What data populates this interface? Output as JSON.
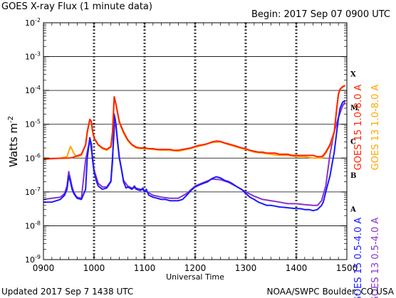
{
  "chart_data": {
    "type": "line",
    "title": "GOES X-ray Flux (1 minute data)",
    "begin_label": "Begin: 2017 Sep 07 0900 UTC",
    "xlabel": "Universal Time",
    "ylabel": "Watts m",
    "ylabel_exp": "-2",
    "x_ticks": [
      "0900",
      "1000",
      "1100",
      "1200",
      "1300",
      "1400",
      "1500"
    ],
    "xlim": [
      "0900",
      "1500"
    ],
    "yscale": "log",
    "ylim": [
      1e-09,
      0.01
    ],
    "y_ticks": [
      {
        "base": "10",
        "exp": "-9"
      },
      {
        "base": "10",
        "exp": "-8"
      },
      {
        "base": "10",
        "exp": "-7"
      },
      {
        "base": "10",
        "exp": "-6"
      },
      {
        "base": "10",
        "exp": "-5"
      },
      {
        "base": "10",
        "exp": "-4"
      },
      {
        "base": "10",
        "exp": "-3"
      },
      {
        "base": "10",
        "exp": "-2"
      }
    ],
    "flare_classes": [
      {
        "label": "X",
        "value": 0.0001
      },
      {
        "label": "M",
        "value": 1e-05
      },
      {
        "label": "C",
        "value": 1e-06
      },
      {
        "label": "B",
        "value": 1e-07
      },
      {
        "label": "A",
        "value": 1e-08
      }
    ],
    "grid": "dashed vertical lines at each hour, solid horizontal lines at each decade",
    "legend_placement": "right, rotated vertical",
    "series": [
      {
        "name": "GOES 15 1.0-8.0 A",
        "color": "#ff2200",
        "x": [
          "0900",
          "0930",
          "0935",
          "0945",
          "0950",
          "0952",
          "0955",
          "0957",
          "0958",
          "1000",
          "1005",
          "1010",
          "1015",
          "1020",
          "1022",
          "1024",
          "1026",
          "1028",
          "1030",
          "1035",
          "1040",
          "1045",
          "1050",
          "1055",
          "1100",
          "1105",
          "1110",
          "1115",
          "1120",
          "1125",
          "1130",
          "1135",
          "1140",
          "1145",
          "1150",
          "1155",
          "1200",
          "1205",
          "1210",
          "1215",
          "1220",
          "1225",
          "1230",
          "1235",
          "1240",
          "1245",
          "1250",
          "1255",
          "1300",
          "1305",
          "1310",
          "1315",
          "1320",
          "1325",
          "1330",
          "1335",
          "1340",
          "1345",
          "1350",
          "1355",
          "1400",
          "1405",
          "1410",
          "1415",
          "1420",
          "1425",
          "1430",
          "1432",
          "1435",
          "1440",
          "1445",
          "1448",
          "1450",
          "1452",
          "1455",
          "1458",
          "1500"
        ],
        "values": [
          9.5e-07,
          1e-06,
          1.05e-06,
          1.3e-06,
          2.5e-06,
          6e-06,
          1.4e-05,
          1.2e-05,
          7e-06,
          4e-06,
          2.5e-06,
          2e-06,
          1.8e-06,
          2.2e-06,
          6e-06,
          6.5e-05,
          4e-05,
          2.2e-05,
          1.2e-05,
          6e-06,
          3.5e-06,
          2.5e-06,
          2.1e-06,
          2e-06,
          2e-06,
          1.9e-06,
          1.9e-06,
          1.8e-06,
          1.8e-06,
          1.8e-06,
          1.8e-06,
          1.7e-06,
          1.7e-06,
          1.8e-06,
          1.9e-06,
          2e-06,
          2.2e-06,
          2.4e-06,
          2.5e-06,
          2.7e-06,
          3e-06,
          3.2e-06,
          3.1e-06,
          2.8e-06,
          2.6e-06,
          2.4e-06,
          2.2e-06,
          2e-06,
          1.9e-06,
          1.7e-06,
          1.6e-06,
          1.5e-06,
          1.5e-06,
          1.4e-06,
          1.4e-06,
          1.4e-06,
          1.3e-06,
          1.3e-06,
          1.3e-06,
          1.2e-06,
          1.2e-06,
          1.2e-06,
          1.2e-06,
          1.2e-06,
          1.2e-06,
          1.1e-06,
          1.1e-06,
          1.2e-06,
          1.5e-06,
          2.5e-06,
          6e-06,
          3e-05,
          8e-05,
          0.00011,
          0.00013,
          0.00014,
          null
        ]
      },
      {
        "name": "GOES 13 1.0-8.0 A",
        "color": "#ffa500",
        "x": [
          "0900",
          "0910",
          "0920",
          "0928",
          "0930",
          "0932",
          "0934",
          "0936",
          "0938",
          "0940",
          "0945",
          "0950",
          "0952",
          "0955",
          "0957",
          "0958",
          "1000",
          "1005",
          "1010",
          "1015",
          "1020",
          "1022",
          "1024",
          "1026",
          "1028",
          "1030",
          "1035",
          "1040",
          "1045",
          "1050",
          "1055",
          "1100",
          "1110",
          "1120",
          "1130",
          "1140",
          "1150",
          "1200",
          "1210",
          "1220",
          "1230",
          "1240",
          "1250",
          "1300",
          "1310",
          "1320",
          "1330",
          "1340",
          "1350",
          "1400",
          "1410",
          "1420",
          "1425",
          "1430",
          "1432",
          "1435",
          "1440",
          "1445",
          "1448",
          "1450",
          "1452",
          "1455",
          "1458",
          "1500"
        ],
        "values": [
          9e-07,
          9.5e-07,
          1e-06,
          1.1e-06,
          1.6e-06,
          2.2e-06,
          1.8e-06,
          1.4e-06,
          1.2e-06,
          1.1e-06,
          1.2e-06,
          2.4e-06,
          5.5e-06,
          1.3e-05,
          1.1e-05,
          6.5e-06,
          3.8e-06,
          2.4e-06,
          1.9e-06,
          1.7e-06,
          2.1e-06,
          5.5e-06,
          6e-05,
          3.8e-05,
          2.1e-05,
          1.1e-05,
          5.5e-06,
          3.3e-06,
          2.4e-06,
          2e-06,
          1.9e-06,
          1.9e-06,
          1.8e-06,
          1.7e-06,
          1.7e-06,
          1.6e-06,
          1.8e-06,
          2.1e-06,
          2.4e-06,
          2.9e-06,
          3e-06,
          2.5e-06,
          2.1e-06,
          1.8e-06,
          1.5e-06,
          1.4e-06,
          1.3e-06,
          1.2e-06,
          1.2e-06,
          1.1e-06,
          1.1e-06,
          1e-06,
          1e-06,
          1e-06,
          1.1e-06,
          1.4e-06,
          2.3e-06,
          5.5e-06,
          2.8e-05,
          7.5e-05,
          0.000105,
          0.000125,
          0.000135,
          null
        ]
      },
      {
        "name": "GOES 15 0.5-4.0 A",
        "color": "#1a1aff",
        "x": [
          "0900",
          "0910",
          "0920",
          "0925",
          "0928",
          "0930",
          "0932",
          "0934",
          "0936",
          "0938",
          "0940",
          "0945",
          "0950",
          "0952",
          "0955",
          "0957",
          "0958",
          "1000",
          "1003",
          "1005",
          "1008",
          "1010",
          "1015",
          "1020",
          "1022",
          "1024",
          "1026",
          "1028",
          "1030",
          "1033",
          "1035",
          "1038",
          "1040",
          "1045",
          "1048",
          "1050",
          "1055",
          "1058",
          "1100",
          "1102",
          "1105",
          "1110",
          "1115",
          "1120",
          "1125",
          "1130",
          "1135",
          "1140",
          "1145",
          "1150",
          "1155",
          "1200",
          "1205",
          "1210",
          "1215",
          "1220",
          "1225",
          "1230",
          "1235",
          "1240",
          "1245",
          "1250",
          "1255",
          "1300",
          "1305",
          "1310",
          "1315",
          "1320",
          "1325",
          "1330",
          "1335",
          "1340",
          "1345",
          "1350",
          "1355",
          "1400",
          "1405",
          "1410",
          "1415",
          "1420",
          "1425",
          "1430",
          "1432",
          "1435",
          "1440",
          "1445",
          "1448",
          "1450",
          "1452",
          "1455",
          "1458",
          "1500"
        ],
        "values": [
          5e-08,
          5e-08,
          6e-08,
          8e-08,
          1.2e-07,
          3e-07,
          2e-07,
          1.2e-07,
          9e-08,
          7.5e-08,
          6.5e-08,
          6e-08,
          1.2e-07,
          1e-06,
          4e-06,
          2.5e-06,
          1e-06,
          4e-07,
          2e-07,
          1.5e-07,
          1.3e-07,
          1.2e-07,
          1.3e-07,
          2e-07,
          8e-07,
          2e-05,
          1e-05,
          3e-06,
          1e-06,
          4e-07,
          2e-07,
          1.3e-07,
          1.4e-07,
          1.2e-07,
          1.5e-07,
          1.2e-07,
          1.1e-07,
          1.3e-07,
          1e-07,
          1.2e-07,
          8e-08,
          7e-08,
          6.5e-08,
          6e-08,
          6e-08,
          5.5e-08,
          5.5e-08,
          5.5e-08,
          6e-08,
          8e-08,
          1.1e-07,
          1.4e-07,
          1.6e-07,
          1.8e-07,
          2e-07,
          2.5e-07,
          2.8e-07,
          2.6e-07,
          2.2e-07,
          2e-07,
          1.7e-07,
          1.4e-07,
          1.2e-07,
          9e-08,
          7e-08,
          6e-08,
          5e-08,
          4.5e-08,
          4e-08,
          4e-08,
          3.8e-08,
          3.6e-08,
          3.5e-08,
          3.4e-08,
          3.3e-08,
          3.2e-08,
          3.2e-08,
          3e-08,
          3e-08,
          2.8e-08,
          3e-08,
          4e-08,
          5e-08,
          1e-07,
          3e-07,
          1.5e-06,
          6e-06,
          1.5e-05,
          3e-05,
          4.5e-05,
          5e-05,
          null
        ]
      },
      {
        "name": "GOES 13 0.5-4.0 A",
        "color": "#8833cc",
        "x": [
          "0900",
          "0910",
          "0920",
          "0925",
          "0928",
          "0930",
          "0932",
          "0934",
          "0936",
          "0938",
          "0940",
          "0945",
          "0950",
          "0955",
          "0958",
          "1000",
          "1005",
          "1010",
          "1015",
          "1020",
          "1025",
          "1030",
          "1035",
          "1040",
          "1045",
          "1050",
          "1055",
          "1100",
          "1110",
          "1120",
          "1130",
          "1140",
          "1150",
          "1200",
          "1210",
          "1220",
          "1230",
          "1240",
          "1250",
          "1300",
          "1310",
          "1320",
          "1330",
          "1340",
          "1350",
          "1400",
          "1410",
          "1420",
          "1425",
          "1430",
          "1435",
          "1440",
          "1445",
          "1450",
          "1455",
          "1458",
          "1500"
        ],
        "values": [
          6e-08,
          6.5e-08,
          7e-08,
          9e-08,
          1.5e-07,
          4e-07,
          2.4e-07,
          1.4e-07,
          1e-07,
          8e-08,
          7e-08,
          6.5e-08,
          9e-07,
          3.5e-06,
          1.2e-06,
          4.5e-07,
          1.8e-07,
          1.4e-07,
          1.4e-07,
          2.1e-07,
          1.5e-05,
          1.1e-06,
          2.2e-07,
          1.5e-07,
          1.3e-07,
          1.3e-07,
          1.2e-07,
          1.1e-07,
          8e-08,
          7e-08,
          6.5e-08,
          6.5e-08,
          9e-08,
          1.5e-07,
          1.9e-07,
          2.4e-07,
          2.3e-07,
          1.9e-07,
          1.4e-07,
          1e-07,
          7.5e-08,
          6e-08,
          5.5e-08,
          5e-08,
          4.5e-08,
          4.5e-08,
          4.2e-08,
          4e-08,
          4e-08,
          5.5e-08,
          1.5e-07,
          1.3e-06,
          6e-06,
          1.6e-05,
          3.5e-05,
          4.5e-05,
          null
        ]
      }
    ]
  },
  "footer": {
    "updated": "Updated 2017 Sep  7 1438 UTC",
    "credit": "NOAA/SWPC Boulder, CO USA"
  }
}
